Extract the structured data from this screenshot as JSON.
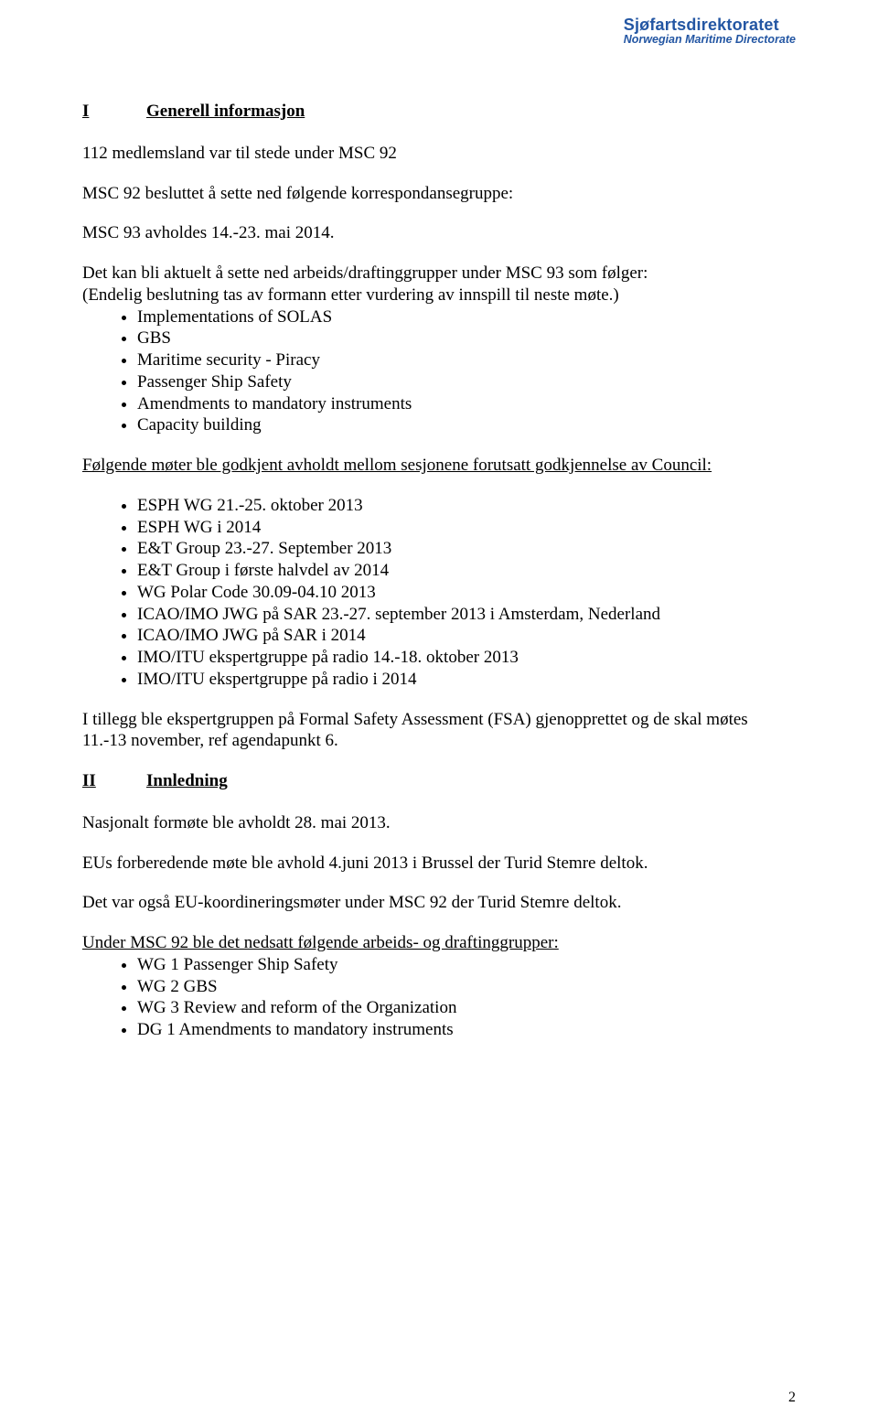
{
  "header": {
    "main": "Sjøfartsdirektoratet",
    "sub": "Norwegian  Maritime Directorate",
    "main_color": "#2356a3",
    "sub_color": "#2356a3"
  },
  "section1": {
    "roman": "I",
    "title": "Generell informasjon",
    "p1": "112 medlemsland var til stede under MSC 92",
    "p2": "MSC 92 besluttet å sette ned følgende korrespondansegruppe:",
    "p3": "MSC 93 avholdes 14.-23. mai 2014.",
    "p4a": "Det kan bli aktuelt å sette ned arbeids/draftinggrupper under MSC 93 som følger:",
    "p4b": "(Endelig beslutning tas av formann etter vurdering av innspill til neste møte.)",
    "list1": [
      "Implementations of SOLAS",
      "GBS",
      "Maritime security - Piracy",
      "Passenger Ship Safety",
      "Amendments to mandatory instruments",
      "Capacity building"
    ],
    "p5": "Følgende møter ble godkjent avholdt mellom sesjonene forutsatt godkjennelse av Council:",
    "list2": [
      "ESPH WG 21.-25. oktober 2013",
      "ESPH WG i 2014",
      "E&T Group 23.-27. September 2013",
      "E&T Group i første halvdel av 2014",
      "WG Polar Code 30.09-04.10 2013",
      "ICAO/IMO JWG på SAR 23.-27. september 2013 i Amsterdam, Nederland",
      "ICAO/IMO JWG på SAR i 2014",
      "IMO/ITU ekspertgruppe på radio 14.-18. oktober 2013",
      "IMO/ITU ekspertgruppe på radio i 2014"
    ],
    "p6": "I tillegg ble ekspertgruppen på Formal Safety Assessment (FSA) gjenopprettet og de skal møtes 11.-13 november, ref agendapunkt 6."
  },
  "section2": {
    "roman": "II",
    "title": "Innledning",
    "p1": "Nasjonalt formøte ble avholdt 28. mai 2013.",
    "p2": "EUs forberedende møte ble avhold 4.juni 2013 i Brussel der Turid Stemre deltok.",
    "p3": "Det var også EU-koordineringsmøter under MSC 92 der Turid Stemre deltok.",
    "p4": "Under MSC 92 ble det nedsatt følgende arbeids- og draftinggrupper:",
    "list1": [
      "WG 1  Passenger Ship Safety",
      "WG 2  GBS",
      "WG 3  Review and reform of the Organization",
      "DG 1   Amendments to mandatory instruments"
    ]
  },
  "page_number": "2"
}
